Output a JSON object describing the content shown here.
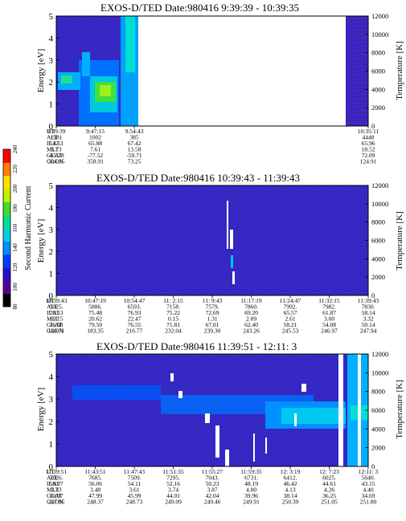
{
  "panels": [
    {
      "title": "EXOS-D/TED   Date:980416  9:39:39 - 10:39:35",
      "ylabel": "Energy [eV]",
      "y2label": "Temperature [K]",
      "yticks": [
        "0",
        "1",
        "2",
        "3",
        "4",
        "5"
      ],
      "y2ticks": [
        "0",
        "2000",
        "4000",
        "6000",
        "8000",
        "10000",
        "12000"
      ],
      "row_labels": [
        "UT",
        "ALT",
        "ILAT",
        "MLT",
        "GLAT",
        "GLON"
      ],
      "columns": [
        {
          "x": 0.0,
          "vals": [
            "9:39:39",
            "1981",
            "51.53",
            "5.73",
            "-65.78",
            "304.15"
          ]
        },
        {
          "x": 0.125,
          "vals": [
            "9:47:15",
            "1002",
            "65.88",
            "7.61",
            "-77.52",
            "358.91"
          ]
        },
        {
          "x": 0.25,
          "vals": [
            "9:54:43",
            "385",
            "67.42",
            "13.58",
            "-59.71",
            "73.25"
          ]
        },
        {
          "x": 1.0,
          "vals": [
            "10:35:11",
            "4448",
            "65.96",
            "18.52",
            "72.09",
            "124.91"
          ]
        }
      ]
    },
    {
      "title": "EXOS-D/TED   Date:980416  10:39:43 - 11:39:43",
      "ylabel": "Energy [eV]",
      "y2label": "Temperature [K]",
      "yticks": [
        "0",
        "1",
        "2",
        "3",
        "4",
        "5"
      ],
      "y2ticks": [
        "0",
        "2000",
        "4000",
        "6000",
        "8000",
        "10000",
        "12000"
      ],
      "row_labels": [
        "UT",
        "ALT",
        "ILAT",
        "MLT",
        "GLAT",
        "GLON"
      ],
      "columns": [
        {
          "x": 0.0,
          "vals": [
            "10:39:43",
            "5025.",
            "70.53",
            "19.15",
            "76.68",
            "140.71"
          ]
        },
        {
          "x": 0.125,
          "vals": [
            "10:47:19",
            "5886.",
            "75.48",
            "20.62",
            "79.50",
            "183.35"
          ]
        },
        {
          "x": 0.25,
          "vals": [
            "10:54:47",
            "6593.",
            "76.93",
            "22.47",
            "76.55",
            "216.77"
          ]
        },
        {
          "x": 0.375,
          "vals": [
            "11: 2:15",
            "7158.",
            "75.22",
            "0.15",
            "71.81",
            "232.04"
          ]
        },
        {
          "x": 0.5,
          "vals": [
            "11: 9:43",
            "7579.",
            "72.69",
            "1.31",
            "67.01",
            "239.30"
          ]
        },
        {
          "x": 0.625,
          "vals": [
            "11:17:19",
            "7860.",
            "69.20",
            "2.09",
            "62.40",
            "243.26"
          ]
        },
        {
          "x": 0.75,
          "vals": [
            "11:24:47",
            "7992.",
            "65.57",
            "2.61",
            "58.21",
            "245.53"
          ]
        },
        {
          "x": 0.875,
          "vals": [
            "11:32:15",
            "7982.",
            "61.87",
            "3.00",
            "54.08",
            "246.97"
          ]
        },
        {
          "x": 1.0,
          "vals": [
            "11:39:43",
            "7830.",
            "58.14",
            "3.32",
            "50.14",
            "247.94"
          ]
        }
      ]
    },
    {
      "title": "EXOS-D/TED   Date:980416  11:39:51 - 12:11: 3",
      "ylabel": "Energy [eV]",
      "y2label": "Temperature [K]",
      "yticks": [
        "0",
        "1",
        "2",
        "3",
        "4",
        "5"
      ],
      "y2ticks": [
        "0",
        "2000",
        "4000",
        "6000",
        "8000",
        "10000",
        "12000"
      ],
      "row_labels": [
        "UT",
        "ALT",
        "ILAT",
        "MLT",
        "GLAT",
        "GLON"
      ],
      "columns": [
        {
          "x": 0.0,
          "vals": [
            "11:39:51",
            "7826.",
            "58.07",
            "3.33",
            "50.07",
            "247.95"
          ]
        },
        {
          "x": 0.125,
          "vals": [
            "11:43:51",
            "7685.",
            "56.06",
            "3.48",
            "47.99",
            "248.37"
          ]
        },
        {
          "x": 0.25,
          "vals": [
            "11:47:43",
            "7509.",
            "54.11",
            "3.61",
            "45.99",
            "248.73"
          ]
        },
        {
          "x": 0.375,
          "vals": [
            "11:51:35",
            "7295.",
            "52.16",
            "3.74",
            "44.01",
            "249.09"
          ]
        },
        {
          "x": 0.5,
          "vals": [
            "11:55:27",
            "7043.",
            "50.23",
            "3.87",
            "42.04",
            "249.46"
          ]
        },
        {
          "x": 0.625,
          "vals": [
            "11:59:35",
            "6731.",
            "48.19",
            "4.00",
            "39.96",
            "249.91"
          ]
        },
        {
          "x": 0.75,
          "vals": [
            "12: 3:19",
            "6412.",
            "46.42",
            "4.13",
            "38.14",
            "250.39"
          ]
        },
        {
          "x": 0.875,
          "vals": [
            "12: 7:23",
            "6025.",
            "44.61",
            "4.26",
            "36.25",
            "251.05"
          ]
        },
        {
          "x": 1.0,
          "vals": [
            "12:11: 3",
            "5640.",
            "43.15",
            "4.40",
            "34.69",
            "251.80"
          ]
        }
      ]
    }
  ],
  "colorbar": {
    "label": "Second Harmonic Current",
    "ticks": [
      "80",
      "100",
      "120",
      "140",
      "160",
      "180",
      "200",
      "220",
      "240"
    ],
    "colors": [
      "#000000",
      "#5a0090",
      "#2a10c8",
      "#0040ff",
      "#0090ff",
      "#00d0e0",
      "#00e090",
      "#40e020",
      "#c0f000",
      "#ffe000",
      "#ff8000",
      "#ff0000"
    ]
  },
  "chart_data": {
    "type": "heatmap",
    "panels": [
      {
        "time_range": [
          "9:39:39",
          "10:39:35"
        ],
        "ylim": [
          0,
          5
        ],
        "y2lim": [
          0,
          12000
        ]
      },
      {
        "time_range": [
          "10:39:43",
          "11:39:43"
        ],
        "ylim": [
          0,
          5
        ],
        "y2lim": [
          0,
          12000
        ]
      },
      {
        "time_range": [
          "11:39:51",
          "12:11: 3"
        ],
        "ylim": [
          0,
          5
        ],
        "y2lim": [
          0,
          12000
        ]
      }
    ],
    "ylabel": "Energy [eV]",
    "y2label": "Temperature [K]",
    "colorbar_label": "Second Harmonic Current",
    "colorbar_range": [
      80,
      240
    ]
  }
}
